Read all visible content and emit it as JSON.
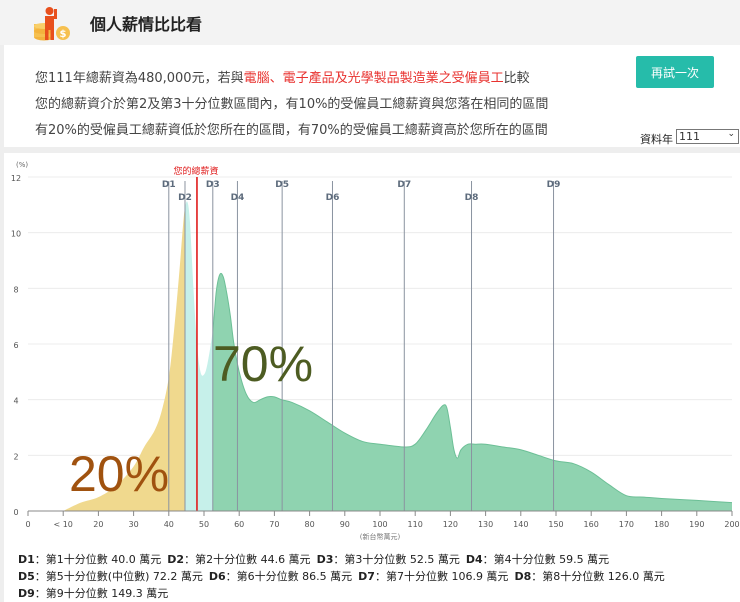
{
  "header": {
    "title": "個人薪情比比看",
    "logo_icon": "salary-coins-person-icon"
  },
  "info": {
    "line1_prefix": "您111年總薪資為480,000元，若與",
    "line1_highlight": "電腦、電子產品及光學製品製造業之受僱員工",
    "line1_suffix": "比較",
    "line2": "您的總薪資介於第2及第3十分位數區間內，有10%的受僱員工總薪資與您落在相同的區間",
    "line3": "有20%的受僱員工總薪資低於您所在的區間，有70%的受僱員工總薪資高於您所在的區間",
    "retry_label": "再試一次",
    "year_label": "資料年",
    "year_value": "111"
  },
  "colors": {
    "below": "#f0d98e",
    "same": "#c6f0ea",
    "above": "#8fd3b0",
    "above_stroke": "#6cbf96",
    "your_line": "#e01b1b",
    "decile_line": "#8a93a0",
    "label_below": "#a0520f",
    "label_above": "#4d5c22",
    "accent_button": "#26bcaa"
  },
  "chart_data": {
    "type": "area",
    "title": "",
    "xlabel": "(新台幣萬元)",
    "ylabel": "(%)",
    "xlim": [
      0,
      200
    ],
    "ylim": [
      0,
      12
    ],
    "x_ticks": [
      "0",
      "< 10",
      "20",
      "30",
      "40",
      "50",
      "60",
      "70",
      "80",
      "90",
      "100",
      "110",
      "120",
      "130",
      "140",
      "150",
      "160",
      "170",
      "180",
      "190",
      "200"
    ],
    "y_ticks": [
      "0",
      "2",
      "4",
      "6",
      "8",
      "10",
      "12"
    ],
    "grid": "horizontal",
    "your_salary": {
      "label": "您的總薪資",
      "value": 48
    },
    "region_labels": {
      "below": "20%",
      "above": "70%"
    },
    "density": {
      "x": [
        10,
        15,
        20,
        25,
        30,
        33,
        36,
        38,
        40,
        41.5,
        43,
        44,
        44.6,
        45.3,
        46,
        47,
        48,
        49,
        50,
        51,
        52.5,
        53.5,
        54.5,
        55.5,
        56.5,
        57.5,
        58.5,
        60,
        62,
        64,
        66,
        68,
        70,
        72,
        75,
        80,
        85,
        90,
        95,
        100,
        106.9,
        110,
        113,
        116,
        118,
        119,
        120,
        121,
        122,
        123,
        125,
        127,
        130,
        135,
        140,
        145,
        150,
        155,
        160,
        165,
        170,
        175,
        180,
        190,
        200
      ],
      "y": [
        0,
        0.3,
        0.5,
        0.9,
        1.6,
        2.3,
        2.9,
        3.6,
        4.8,
        6.5,
        8.6,
        10.2,
        10.9,
        11.1,
        10.4,
        8.0,
        6.0,
        5.0,
        4.9,
        5.3,
        6.5,
        7.9,
        8.5,
        8.4,
        7.8,
        7.0,
        6.0,
        5.0,
        4.2,
        3.9,
        4.0,
        4.1,
        4.1,
        4.0,
        3.9,
        3.6,
        3.2,
        2.8,
        2.5,
        2.4,
        2.3,
        2.4,
        2.9,
        3.5,
        3.8,
        3.7,
        3.0,
        2.2,
        1.9,
        2.2,
        2.4,
        2.4,
        2.4,
        2.3,
        2.2,
        2.0,
        1.8,
        1.7,
        1.4,
        0.95,
        0.55,
        0.5,
        0.45,
        0.38,
        0.3
      ]
    },
    "deciles": [
      {
        "name": "D1",
        "desc": "第1十分位數",
        "value": 40.0,
        "unit": "萬元",
        "label_row": 0
      },
      {
        "name": "D2",
        "desc": "第2十分位數",
        "value": 44.6,
        "unit": "萬元",
        "label_row": 1
      },
      {
        "name": "D3",
        "desc": "第3十分位數",
        "value": 52.5,
        "unit": "萬元",
        "label_row": 0
      },
      {
        "name": "D4",
        "desc": "第4十分位數",
        "value": 59.5,
        "unit": "萬元",
        "label_row": 1
      },
      {
        "name": "D5",
        "desc": "第5十分位數(中位數)",
        "value": 72.2,
        "unit": "萬元",
        "label_row": 0
      },
      {
        "name": "D6",
        "desc": "第6十分位數",
        "value": 86.5,
        "unit": "萬元",
        "label_row": 1
      },
      {
        "name": "D7",
        "desc": "第7十分位數",
        "value": 106.9,
        "unit": "萬元",
        "label_row": 0
      },
      {
        "name": "D8",
        "desc": "第8十分位數",
        "value": 126.0,
        "unit": "萬元",
        "label_row": 1
      },
      {
        "name": "D9",
        "desc": "第9十分位數",
        "value": 149.3,
        "unit": "萬元",
        "label_row": 0
      }
    ]
  },
  "legend_rows": [
    [
      0,
      1,
      2,
      3
    ],
    [
      4,
      5,
      6,
      7
    ],
    [
      8
    ]
  ]
}
